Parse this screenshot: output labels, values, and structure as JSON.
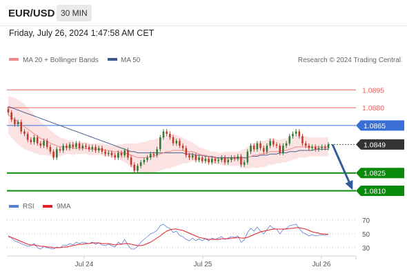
{
  "header": {
    "symbol": "EUR/USD",
    "timeframe": "30 MIN",
    "datetime": "Friday, July 26, 2024 1:47:58 AM CET"
  },
  "legend": {
    "ma20_label": "MA 20 + Bollinger Bands",
    "ma50_label": "MA 50",
    "credit": "Research © 2024 Trading Central"
  },
  "rsi_legend": {
    "rsi_label": "RSI",
    "ma_label": "9MA"
  },
  "colors": {
    "resistance": "#e8605a",
    "pivot": "#3a6fd8",
    "support": "#0a8a0a",
    "current": "#333333",
    "candle_up": "#2f7a35",
    "candle_down": "#c0392b",
    "bands": "#fbdede",
    "ma20": "#f08a8a",
    "ma50": "#4d5f8f",
    "arrow": "#2f5d9c",
    "rsi": "#5b7fd6",
    "rsi_ma": "#e0202a"
  },
  "chart_data": {
    "type": "candlestick",
    "series_labels": [
      "MA 20 + Bollinger Bands",
      "MA 50"
    ],
    "x_ticks": [
      "Jul 24",
      "Jul 25",
      "Jul 26"
    ],
    "price_range": [
      1.0808,
      1.0912
    ],
    "levels": [
      {
        "value": "1.0895",
        "type": "resistance"
      },
      {
        "value": "1.0880",
        "type": "resistance"
      },
      {
        "value": "1.0865",
        "type": "pivot"
      },
      {
        "value": "1.0849",
        "type": "current"
      },
      {
        "value": "1.0825",
        "type": "support"
      },
      {
        "value": "1.0810",
        "type": "support"
      }
    ],
    "forecast_arrow": {
      "from": 1.0849,
      "to": 1.081
    },
    "closes": [
      1.0876,
      1.087,
      1.0866,
      1.0868,
      1.086,
      1.0858,
      1.0853,
      1.0851,
      1.0855,
      1.085,
      1.0848,
      1.0852,
      1.0847,
      1.0843,
      1.0838,
      1.0845,
      1.0844,
      1.0848,
      1.0846,
      1.0849,
      1.0847,
      1.085,
      1.0846,
      1.0848,
      1.0847,
      1.0845,
      1.0847,
      1.0844,
      1.0846,
      1.0843,
      1.0841,
      1.0842,
      1.084,
      1.0838,
      1.0842,
      1.084,
      1.0844,
      1.0838,
      1.0832,
      1.0827,
      1.0831,
      1.0834,
      1.0836,
      1.0838,
      1.0841,
      1.084,
      1.0845,
      1.0855,
      1.086,
      1.0858,
      1.0855,
      1.085,
      1.0852,
      1.0848,
      1.0846,
      1.084,
      1.0838,
      1.084,
      1.0836,
      1.0838,
      1.0835,
      1.0837,
      1.0834,
      1.0837,
      1.0835,
      1.0836,
      1.0838,
      1.0834,
      1.0836,
      1.0838,
      1.0837,
      1.0839,
      1.0832,
      1.0834,
      1.0843,
      1.0848,
      1.0845,
      1.085,
      1.0846,
      1.0843,
      1.0848,
      1.0852,
      1.0849,
      1.0848,
      1.0842,
      1.0848,
      1.085,
      1.0856,
      1.0858,
      1.086,
      1.0856,
      1.085,
      1.0848,
      1.0846,
      1.0847,
      1.0845,
      1.0846,
      1.0847,
      1.0846,
      1.0849
    ],
    "ma20": [
      1.0874,
      1.0872,
      1.087,
      1.0868,
      1.0866,
      1.0864,
      1.0862,
      1.086,
      1.0858,
      1.0856,
      1.0854,
      1.0853,
      1.0852,
      1.085,
      1.0849,
      1.0848,
      1.0847,
      1.0847,
      1.0847,
      1.0847,
      1.0846,
      1.0846,
      1.0846,
      1.0846,
      1.0846,
      1.0845,
      1.0845,
      1.0845,
      1.0845,
      1.0845,
      1.0844,
      1.0844,
      1.0843,
      1.0843,
      1.0843,
      1.0842,
      1.0842,
      1.0841,
      1.084,
      1.0839,
      1.0838,
      1.0838,
      1.0838,
      1.0838,
      1.0839,
      1.0839,
      1.084,
      1.0841,
      1.0842,
      1.0843,
      1.0843,
      1.0844,
      1.0844,
      1.0844,
      1.0844,
      1.0843,
      1.0843,
      1.0843,
      1.0842,
      1.0841,
      1.084,
      1.084,
      1.0839,
      1.0838,
      1.0838,
      1.0837,
      1.0837,
      1.0837,
      1.0837,
      1.0837,
      1.0837,
      1.0837,
      1.0837,
      1.0837,
      1.0838,
      1.0839,
      1.084,
      1.084,
      1.0841,
      1.0841,
      1.0842,
      1.0843,
      1.0843,
      1.0843,
      1.0843,
      1.0844,
      1.0844,
      1.0845,
      1.0846,
      1.0847,
      1.0847,
      1.0847,
      1.0847,
      1.0847,
      1.0847,
      1.0847,
      1.0847,
      1.0847,
      1.0847,
      1.0847
    ],
    "ma50": [
      1.0881,
      1.088,
      1.0879,
      1.0878,
      1.0877,
      1.0876,
      1.0875,
      1.0874,
      1.0873,
      1.0872,
      1.0871,
      1.087,
      1.0869,
      1.0868,
      1.0867,
      1.0866,
      1.0865,
      1.0864,
      1.0863,
      1.0862,
      1.0861,
      1.086,
      1.0859,
      1.0858,
      1.0857,
      1.0856,
      1.0855,
      1.0854,
      1.0853,
      1.0852,
      1.0851,
      1.085,
      1.0849,
      1.0848,
      1.0847,
      1.0846,
      1.0845,
      1.0844,
      1.0843,
      1.0843,
      1.0842,
      1.0842,
      1.0842,
      1.0842,
      1.0842,
      1.0842,
      1.0842,
      1.0842,
      1.0842,
      1.0842,
      1.0842,
      1.0842,
      1.0842,
      1.0842,
      1.0842,
      1.0841,
      1.0841,
      1.0841,
      1.084,
      1.084,
      1.084,
      1.0839,
      1.0839,
      1.0839,
      1.0838,
      1.0838,
      1.0838,
      1.0838,
      1.0838,
      1.0838,
      1.0838,
      1.0838,
      1.0838,
      1.0838,
      1.0838,
      1.0839,
      1.0839,
      1.0839,
      1.084,
      1.084,
      1.084,
      1.0841,
      1.0841,
      1.0841,
      1.0842,
      1.0842,
      1.0842,
      1.0843,
      1.0843,
      1.0843,
      1.0844,
      1.0844,
      1.0844,
      1.0844,
      1.0844,
      1.0845,
      1.0845,
      1.0845,
      1.0845,
      1.0845
    ],
    "band_width": [
      0.0016,
      0.0017,
      0.0018,
      0.0019,
      0.0019,
      0.0019,
      0.0018,
      0.0017,
      0.0016,
      0.0015,
      0.0014,
      0.0013,
      0.0012,
      0.0011,
      0.001,
      0.0009,
      0.0008,
      0.0007,
      0.0006,
      0.0006,
      0.0006,
      0.0005,
      0.0005,
      0.0005,
      0.0005,
      0.0005,
      0.0005,
      0.0005,
      0.0005,
      0.0005,
      0.0005,
      0.0005,
      0.0005,
      0.0005,
      0.0006,
      0.0007,
      0.0008,
      0.0009,
      0.001,
      0.0011,
      0.0012,
      0.0013,
      0.0013,
      0.0014,
      0.0014,
      0.0014,
      0.0014,
      0.0014,
      0.0014,
      0.0014,
      0.0014,
      0.0014,
      0.0013,
      0.0012,
      0.0011,
      0.001,
      0.0009,
      0.0008,
      0.0007,
      0.0006,
      0.0006,
      0.0005,
      0.0005,
      0.0005,
      0.0005,
      0.0005,
      0.0005,
      0.0006,
      0.0006,
      0.0006,
      0.0006,
      0.0006,
      0.0007,
      0.0008,
      0.0009,
      0.001,
      0.001,
      0.0011,
      0.0011,
      0.0011,
      0.0011,
      0.0011,
      0.0011,
      0.001,
      0.001,
      0.001,
      0.001,
      0.001,
      0.001,
      0.001,
      0.0009,
      0.0009,
      0.0009,
      0.0008,
      0.0008,
      0.0008,
      0.0008,
      0.0008,
      0.0008,
      0.0008
    ],
    "rsi": {
      "ticks": [
        "70",
        "50",
        "30"
      ],
      "range": [
        20,
        80
      ],
      "values": [
        48,
        44,
        40,
        38,
        36,
        34,
        32,
        33,
        36,
        30,
        28,
        32,
        30,
        29,
        28,
        31,
        30,
        34,
        33,
        36,
        34,
        38,
        36,
        38,
        37,
        36,
        38,
        35,
        37,
        34,
        33,
        35,
        33,
        31,
        38,
        35,
        42,
        34,
        28,
        28,
        32,
        38,
        42,
        46,
        50,
        52,
        55,
        62,
        64,
        60,
        58,
        52,
        54,
        48,
        46,
        42,
        40,
        44,
        40,
        43,
        40,
        43,
        40,
        44,
        42,
        44,
        46,
        42,
        44,
        46,
        45,
        47,
        38,
        41,
        52,
        58,
        54,
        60,
        54,
        50,
        56,
        62,
        58,
        57,
        50,
        56,
        58,
        62,
        63,
        64,
        58,
        52,
        50,
        47,
        49,
        47,
        48,
        49,
        48,
        50
      ],
      "ma": [
        46,
        45,
        43,
        41,
        39,
        37,
        35,
        34,
        34,
        33,
        32,
        32,
        31,
        31,
        30,
        30,
        30,
        31,
        31,
        32,
        33,
        34,
        35,
        35,
        36,
        36,
        37,
        37,
        37,
        36,
        36,
        36,
        35,
        34,
        35,
        35,
        36,
        36,
        35,
        34,
        33,
        33,
        34,
        36,
        38,
        41,
        44,
        47,
        51,
        54,
        56,
        57,
        57,
        56,
        55,
        53,
        51,
        49,
        47,
        45,
        44,
        43,
        42,
        42,
        42,
        42,
        43,
        43,
        43,
        44,
        44,
        45,
        44,
        44,
        45,
        47,
        49,
        51,
        53,
        54,
        55,
        56,
        57,
        57,
        57,
        57,
        57,
        58,
        58,
        59,
        59,
        58,
        57,
        55,
        53,
        52,
        51,
        50,
        50,
        49
      ]
    }
  }
}
